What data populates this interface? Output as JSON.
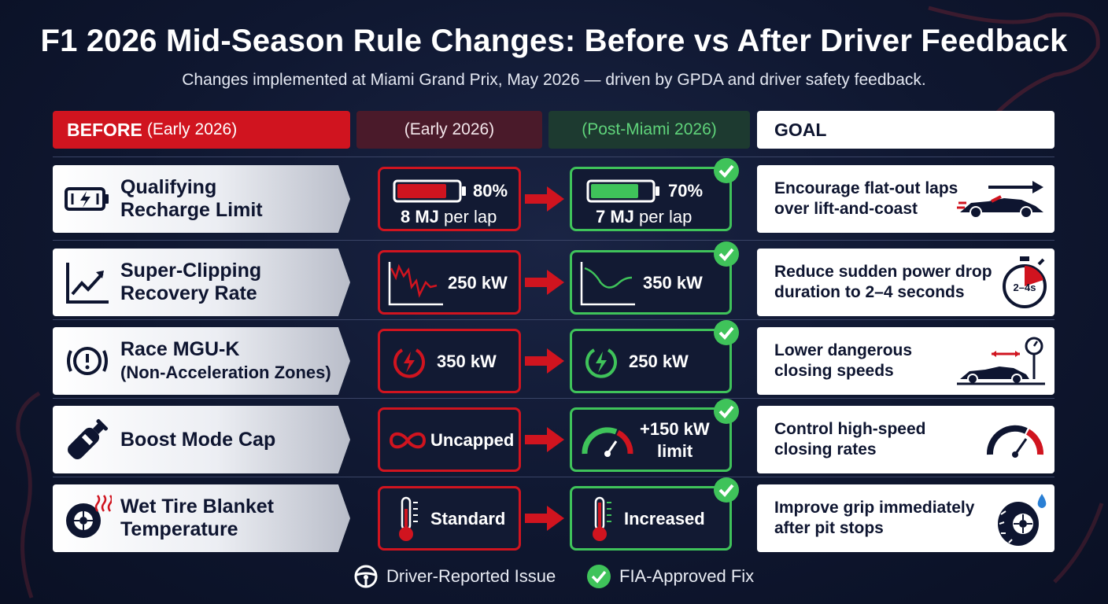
{
  "title": "F1 2026 Mid-Season Rule Changes: Before vs After Driver Feedback",
  "subtitle": "Changes implemented at Miami Grand Prix, May 2026 — driven by GPDA and driver safety feedback.",
  "headers": {
    "before_bold": "BEFORE",
    "before_thin": "(Early 2026)",
    "early": "(Early 2026)",
    "post": "(Post-Miami 2026)",
    "goal": "GOAL"
  },
  "colors": {
    "red": "#d0141f",
    "green": "#3fc35a",
    "navy": "#0e1530"
  },
  "rows": [
    {
      "icon": "battery-charge-icon",
      "label_line1": "Qualifying",
      "label_line2": "Recharge Limit",
      "before": {
        "icon": "battery-80-icon",
        "percent": "80%",
        "value_bold": "8 MJ",
        "value_unit": "per lap",
        "level": 0.8
      },
      "after": {
        "icon": "battery-70-icon",
        "percent": "70%",
        "value_bold": "7 MJ",
        "value_unit": "per lap",
        "level": 0.7
      },
      "goal_line1": "Encourage flat-out laps",
      "goal_line2": "over lift-and-coast",
      "goal_icon": "race-car-arrow-icon"
    },
    {
      "icon": "trend-up-chart-icon",
      "label_line1": "Super-Clipping",
      "label_line2": "Recovery Rate",
      "before": {
        "icon": "jagged-power-graph-icon",
        "value": "250 kW"
      },
      "after": {
        "icon": "smooth-power-graph-icon",
        "value": "350 kW"
      },
      "goal_line1": "Reduce sudden power drop",
      "goal_line2": "duration to 2–4 seconds",
      "goal_icon": "stopwatch-icon",
      "goal_icon_text": "2–4s"
    },
    {
      "icon": "warning-signal-icon",
      "label_line1": "Race MGU-K",
      "label_line2": "(Non-Acceleration Zones)",
      "before": {
        "icon": "power-bolt-icon",
        "value": "350 kW"
      },
      "after": {
        "icon": "power-bolt-icon",
        "value": "250 kW"
      },
      "goal_line1": "Lower dangerous",
      "goal_line2": "closing speeds",
      "goal_icon": "car-closing-speed-icon"
    },
    {
      "icon": "boost-canister-icon",
      "label_line1": "Boost Mode Cap",
      "label_line2": "",
      "before": {
        "icon": "infinity-icon",
        "value": "Uncapped"
      },
      "after": {
        "icon": "speed-gauge-icon",
        "value_line1": "+150 kW",
        "value_line2": "limit"
      },
      "goal_line1": "Control high-speed",
      "goal_line2": "closing rates",
      "goal_icon": "speedometer-icon"
    },
    {
      "icon": "heated-tire-icon",
      "label_line1": "Wet Tire Blanket",
      "label_line2": "Temperature",
      "before": {
        "icon": "thermometer-icon",
        "value": "Standard"
      },
      "after": {
        "icon": "thermometer-icon",
        "value": "Increased"
      },
      "goal_line1": "Improve grip immediately",
      "goal_line2": "after pit stops",
      "goal_icon": "wet-tire-icon"
    }
  ],
  "legend": {
    "driver": {
      "icon": "steering-wheel-icon",
      "label": "Driver-Reported Issue"
    },
    "fia": {
      "icon": "check-circle-icon",
      "label": "FIA-Approved Fix"
    }
  }
}
